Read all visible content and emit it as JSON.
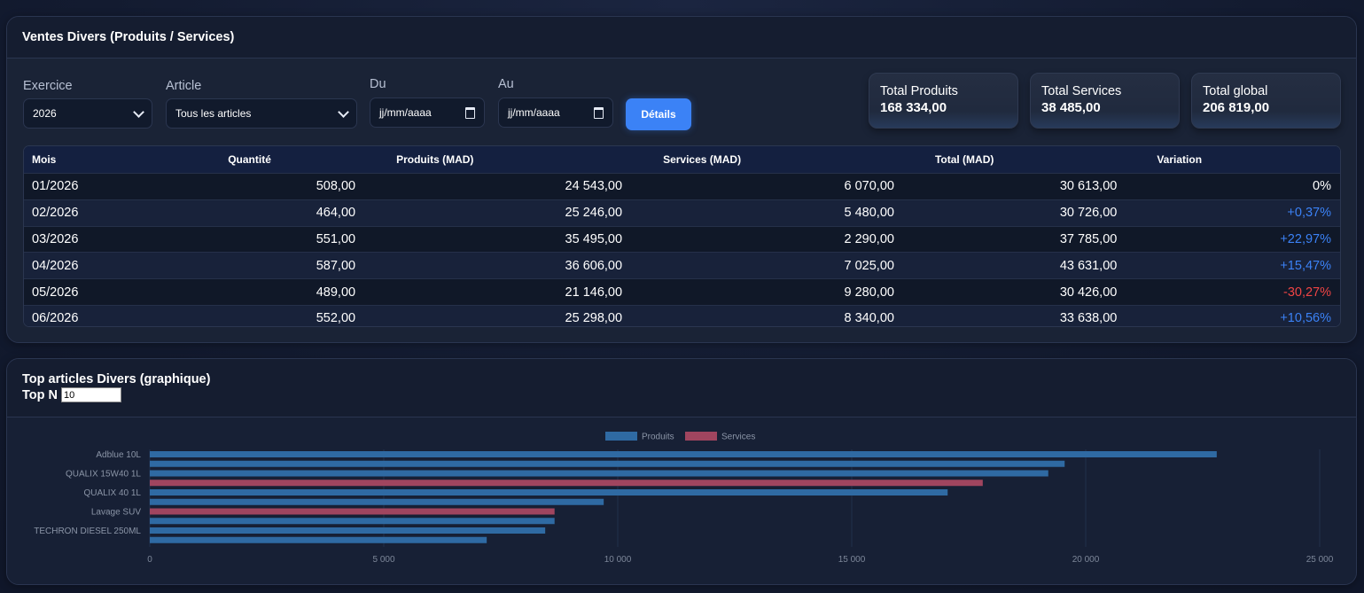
{
  "sales_card": {
    "title": "Ventes Divers (Produits / Services)",
    "filters": {
      "exercice_label": "Exercice",
      "exercice_value": "2026",
      "article_label": "Article",
      "article_value": "Tous les articles",
      "du_label": "Du",
      "du_placeholder": "jj/mm/aaaa",
      "au_label": "Au",
      "au_placeholder": "jj/mm/aaaa",
      "details_button": "Détails"
    },
    "stats": [
      {
        "label": "Total Produits",
        "value": "168 334,00"
      },
      {
        "label": "Total Services",
        "value": "38 485,00"
      },
      {
        "label": "Total global",
        "value": "206 819,00"
      }
    ],
    "table": {
      "headers": [
        "Mois",
        "Quantité",
        "Produits (MAD)",
        "Services (MAD)",
        "Total (MAD)",
        "Variation"
      ],
      "rows": [
        {
          "mois": "01/2026",
          "quantite": "508,00",
          "produits": "24 543,00",
          "services": "6 070,00",
          "total": "30 613,00",
          "variation": "0%",
          "trend": "neutral"
        },
        {
          "mois": "02/2026",
          "quantite": "464,00",
          "produits": "25 246,00",
          "services": "5 480,00",
          "total": "30 726,00",
          "variation": "+0,37%",
          "trend": "pos"
        },
        {
          "mois": "03/2026",
          "quantite": "551,00",
          "produits": "35 495,00",
          "services": "2 290,00",
          "total": "37 785,00",
          "variation": "+22,97%",
          "trend": "pos"
        },
        {
          "mois": "04/2026",
          "quantite": "587,00",
          "produits": "36 606,00",
          "services": "7 025,00",
          "total": "43 631,00",
          "variation": "+15,47%",
          "trend": "pos"
        },
        {
          "mois": "05/2026",
          "quantite": "489,00",
          "produits": "21 146,00",
          "services": "9 280,00",
          "total": "30 426,00",
          "variation": "-30,27%",
          "trend": "neg"
        },
        {
          "mois": "06/2026",
          "quantite": "552,00",
          "produits": "25 298,00",
          "services": "8 340,00",
          "total": "33 638,00",
          "variation": "+10,56%",
          "trend": "pos"
        }
      ]
    }
  },
  "top_card": {
    "title": "Top articles Divers (graphique)",
    "topn_label": "Top N",
    "topn_value": "10"
  },
  "colors": {
    "accent": "#3b82f6",
    "positive": "#3b82f6",
    "negative": "#ef4444",
    "produits_bar": "#2f6aa3",
    "services_bar": "#a0455f"
  },
  "chart_data": {
    "type": "bar",
    "orientation": "horizontal",
    "legend": {
      "position": "top-center",
      "entries": [
        "Produits",
        "Services"
      ]
    },
    "y_labels_shown": [
      "Adblue 10L",
      "QUALIX 15W40 1L",
      "QUALIX 40 1L",
      "Lavage SUV",
      "TECHRON DIESEL 250ML"
    ],
    "bars": [
      {
        "label": "Adblue 10L",
        "series": "Produits",
        "value": 22800
      },
      {
        "label": "",
        "series": "Produits",
        "value": 19550
      },
      {
        "label": "QUALIX 15W40 1L",
        "series": "Produits",
        "value": 19200
      },
      {
        "label": "",
        "series": "Services",
        "value": 17800
      },
      {
        "label": "QUALIX 40 1L",
        "series": "Produits",
        "value": 17050
      },
      {
        "label": "",
        "series": "Produits",
        "value": 9700
      },
      {
        "label": "Lavage SUV",
        "series": "Services",
        "value": 8650
      },
      {
        "label": "",
        "series": "Produits",
        "value": 8650
      },
      {
        "label": "TECHRON DIESEL 250ML",
        "series": "Produits",
        "value": 8450
      },
      {
        "label": "",
        "series": "Produits",
        "value": 7200
      }
    ],
    "x_ticks": [
      "0",
      "5 000",
      "10 000",
      "15 000",
      "20 000",
      "25 000"
    ],
    "xlim": [
      0,
      25000
    ],
    "grid": true
  }
}
